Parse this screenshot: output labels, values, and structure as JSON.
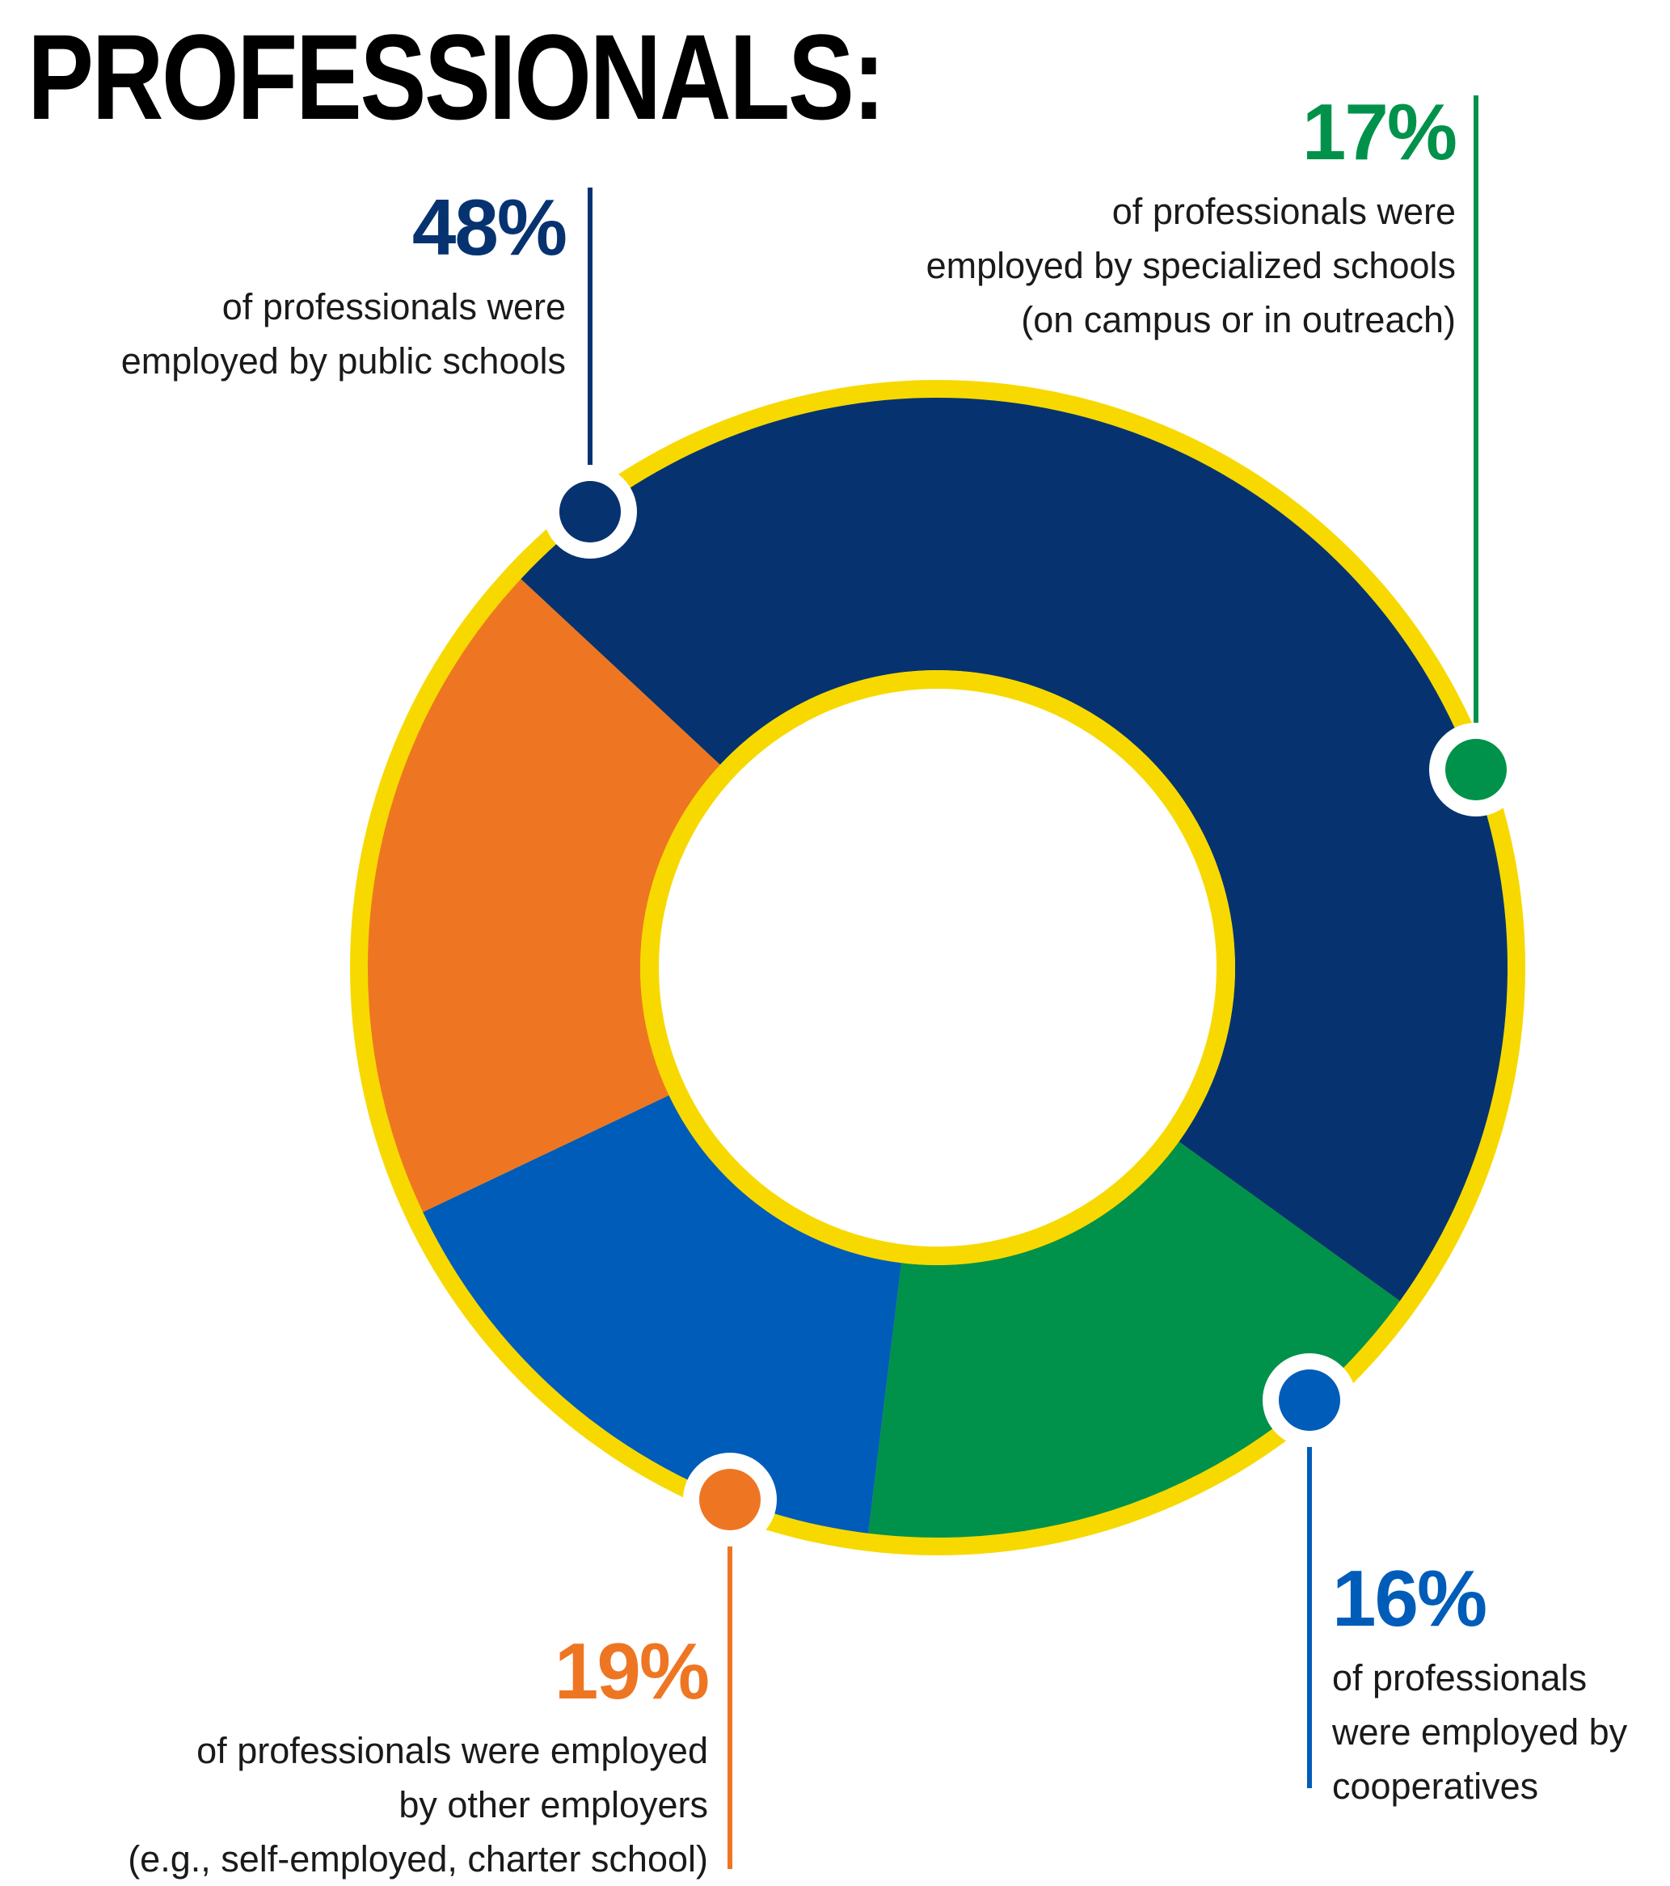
{
  "title": "PROFESSIONALS:",
  "colors": {
    "ring": "#f7d900",
    "public": "#063370",
    "specialized": "#00924a",
    "cooperatives": "#005cb9",
    "other": "#ee7623"
  },
  "chart_data": {
    "type": "pie",
    "title": "PROFESSIONALS:",
    "donut": true,
    "slices": [
      {
        "key": "public",
        "value": 48,
        "color": "#063370"
      },
      {
        "key": "specialized",
        "value": 17,
        "color": "#00924a"
      },
      {
        "key": "cooperatives",
        "value": 16,
        "color": "#005cb9"
      },
      {
        "key": "other",
        "value": 19,
        "color": "#ee7623"
      }
    ]
  },
  "callouts": {
    "public": {
      "pct": "48%",
      "lines": [
        "of professionals were",
        "employed by public schools"
      ]
    },
    "specialized": {
      "pct": "17%",
      "lines": [
        "of professionals were",
        "employed by specialized schools",
        "(on campus or in outreach)"
      ]
    },
    "cooperatives": {
      "pct": "16%",
      "lines": [
        "of professionals",
        "were employed by",
        "cooperatives"
      ]
    },
    "other": {
      "pct": "19%",
      "lines": [
        "of professionals were employed",
        "by other employers",
        "(e.g., self-employed, charter school)"
      ]
    }
  }
}
